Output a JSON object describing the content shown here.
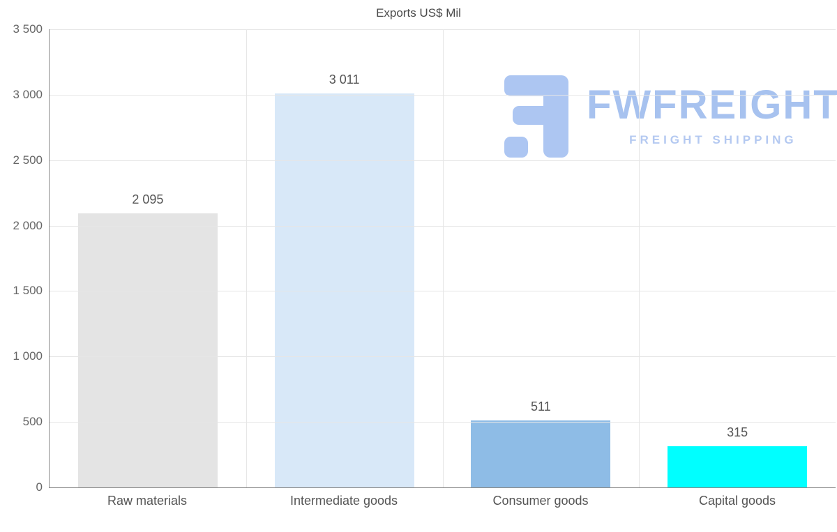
{
  "chart_data": {
    "type": "bar",
    "title": "Exports US$ Mil",
    "categories": [
      "Raw materials",
      "Intermediate goods",
      "Consumer goods",
      "Capital goods"
    ],
    "values": [
      2095,
      3011,
      511,
      315
    ],
    "value_labels": [
      "2 095",
      "3 011",
      "511",
      "315"
    ],
    "bar_colors": [
      "#e4e4e4",
      "#d8e8f8",
      "#8ebce6",
      "#00ffff"
    ],
    "xlabel": "",
    "ylabel": "",
    "ylim": [
      0,
      3500
    ],
    "ytick_interval": 500,
    "ytick_labels": [
      "0",
      "500",
      "1 000",
      "1 500",
      "2 000",
      "2 500",
      "3 000",
      "3 500"
    ],
    "grid": true,
    "legend": "none"
  },
  "watermark": {
    "brand": "FWFREIGHT",
    "tagline": "FREIGHT SHIPPING",
    "color": "#a7c2ef"
  }
}
